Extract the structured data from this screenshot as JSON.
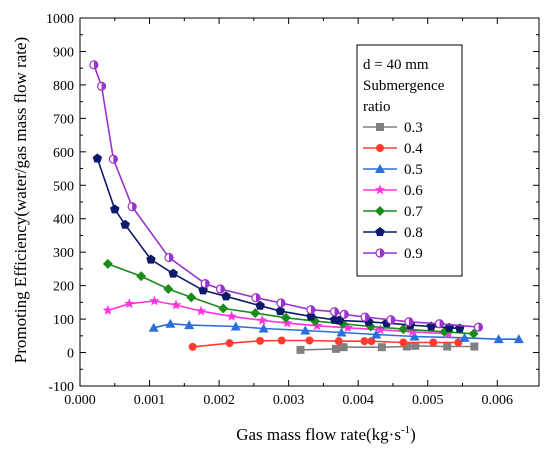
{
  "chart_data": {
    "type": "line",
    "xlabel": "Gas mass flow rate(kg·s",
    "xlabel_sup": "-1",
    "xlabel_end": ")",
    "ylabel": "Promoting Efficiency(water/gas mass flow rate)",
    "xlim": [
      0.0,
      0.0066
    ],
    "ylim": [
      -100,
      1000
    ],
    "xticks": [
      "0.000",
      "0.001",
      "0.002",
      "0.003",
      "0.004",
      "0.005",
      "0.006"
    ],
    "yticks": [
      "-100",
      "0",
      "100",
      "200",
      "300",
      "400",
      "500",
      "600",
      "700",
      "800",
      "900",
      "1000"
    ],
    "grid": false,
    "legend_position": "top-right",
    "legend_title": [
      "d = 40 mm",
      "Submergence",
      "ratio"
    ],
    "series": [
      {
        "name": "0.3",
        "color": "#808080",
        "marker": "square",
        "x": [
          0.00317,
          0.00368,
          0.00379,
          0.00434,
          0.0047,
          0.00482,
          0.00528,
          0.00567
        ],
        "y": [
          8,
          11,
          16,
          16,
          18,
          20,
          18,
          18
        ]
      },
      {
        "name": "0.4",
        "color": "#ff3b30",
        "marker": "circle",
        "x": [
          0.00162,
          0.00215,
          0.00259,
          0.0029,
          0.0033,
          0.00372,
          0.00409,
          0.00419,
          0.00465,
          0.00508,
          0.00544
        ],
        "y": [
          17,
          28,
          35,
          36,
          36,
          34,
          34,
          34,
          30,
          30,
          30
        ]
      },
      {
        "name": "0.5",
        "color": "#2a6fdb",
        "marker": "triangle",
        "x": [
          0.00106,
          0.0013,
          0.00157,
          0.00224,
          0.00264,
          0.00324,
          0.00376,
          0.00426,
          0.00481,
          0.00553,
          0.00602,
          0.00631
        ],
        "y": [
          74,
          86,
          82,
          78,
          72,
          66,
          60,
          54,
          48,
          44,
          40,
          40
        ]
      },
      {
        "name": "0.6",
        "color": "#ff33dd",
        "marker": "star",
        "x": [
          0.0004,
          0.00071,
          0.00107,
          0.00138,
          0.00174,
          0.00218,
          0.00262,
          0.00298,
          0.00341,
          0.00385,
          0.00432,
          0.00478,
          0.0053
        ],
        "y": [
          126,
          146,
          154,
          142,
          124,
          108,
          96,
          88,
          80,
          74,
          68,
          62,
          56
        ]
      },
      {
        "name": "0.7",
        "color": "#1a8c1a",
        "marker": "diamond",
        "x": [
          0.0004,
          0.00088,
          0.00127,
          0.0016,
          0.00206,
          0.00252,
          0.00296,
          0.00338,
          0.00378,
          0.00418,
          0.00465,
          0.00524,
          0.00566
        ],
        "y": [
          265,
          228,
          190,
          165,
          132,
          118,
          104,
          94,
          86,
          78,
          70,
          62,
          56
        ]
      },
      {
        "name": "0.8",
        "color": "#0d1a6b",
        "marker": "pentagon",
        "x": [
          0.00025,
          0.0005,
          0.00065,
          0.00102,
          0.00134,
          0.00177,
          0.0021,
          0.00259,
          0.00288,
          0.00332,
          0.00366,
          0.00373,
          0.00415,
          0.00441,
          0.00475,
          0.00505,
          0.00531,
          0.00546
        ],
        "y": [
          580,
          428,
          382,
          278,
          236,
          186,
          168,
          140,
          124,
          108,
          98,
          96,
          92,
          88,
          82,
          78,
          74,
          72
        ]
      },
      {
        "name": "0.9",
        "color": "#9933cc",
        "marker": "half-circle",
        "x": [
          0.0002,
          0.00031,
          0.00048,
          0.00075,
          0.00128,
          0.0018,
          0.00202,
          0.00253,
          0.00289,
          0.00332,
          0.00366,
          0.0038,
          0.0041,
          0.00447,
          0.00473,
          0.00517,
          0.00573
        ],
        "y": [
          860,
          796,
          578,
          436,
          284,
          206,
          190,
          164,
          148,
          128,
          122,
          114,
          106,
          98,
          92,
          86,
          76
        ]
      }
    ]
  }
}
